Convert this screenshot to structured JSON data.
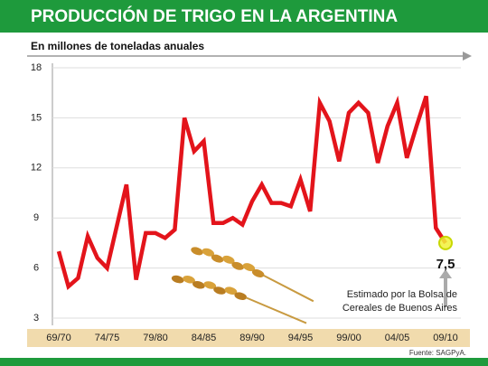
{
  "chart_data": {
    "type": "line",
    "title": "PRODUCCIÓN DE TRIGO EN LA ARGENTINA",
    "subtitle": "En millones de toneladas anuales",
    "source": "Fuente: SAGPyA.",
    "annotation": [
      "Estimado por la Bolsa de",
      "Cereales de Buenos Aires"
    ],
    "categories": [
      "69/70",
      null,
      null,
      null,
      null,
      "74/75",
      null,
      null,
      null,
      null,
      "79/80",
      null,
      null,
      null,
      null,
      "84/85",
      null,
      null,
      null,
      null,
      "89/90",
      null,
      null,
      null,
      null,
      "94/95",
      null,
      null,
      null,
      null,
      "99/00",
      null,
      null,
      null,
      null,
      "04/05",
      null,
      null,
      null,
      null,
      "09/10"
    ],
    "series": [
      {
        "color": "#e3141b",
        "values": [
          7.0,
          4.9,
          5.4,
          7.9,
          6.6,
          6.0,
          8.5,
          11.0,
          5.3,
          8.1,
          8.1,
          7.8,
          8.3,
          15.0,
          13.0,
          13.6,
          8.7,
          8.7,
          9.0,
          8.6,
          10.0,
          11.0,
          9.9,
          9.9,
          9.7,
          11.3,
          9.4,
          15.9,
          14.8,
          12.4,
          15.3,
          15.9,
          15.3,
          12.3,
          14.5,
          15.9,
          12.6,
          14.5,
          16.3,
          8.4,
          7.5
        ],
        "value_labels": [
          null,
          null,
          null,
          null,
          null,
          null,
          null,
          null,
          null,
          null,
          null,
          null,
          null,
          null,
          null,
          null,
          null,
          null,
          null,
          null,
          null,
          null,
          null,
          null,
          null,
          null,
          null,
          null,
          null,
          null,
          null,
          null,
          null,
          null,
          null,
          null,
          null,
          null,
          null,
          null,
          "7,5"
        ]
      }
    ],
    "ylim": [
      3,
      18
    ],
    "yticks": [
      3,
      6,
      9,
      12,
      15,
      18
    ],
    "grid": true
  }
}
